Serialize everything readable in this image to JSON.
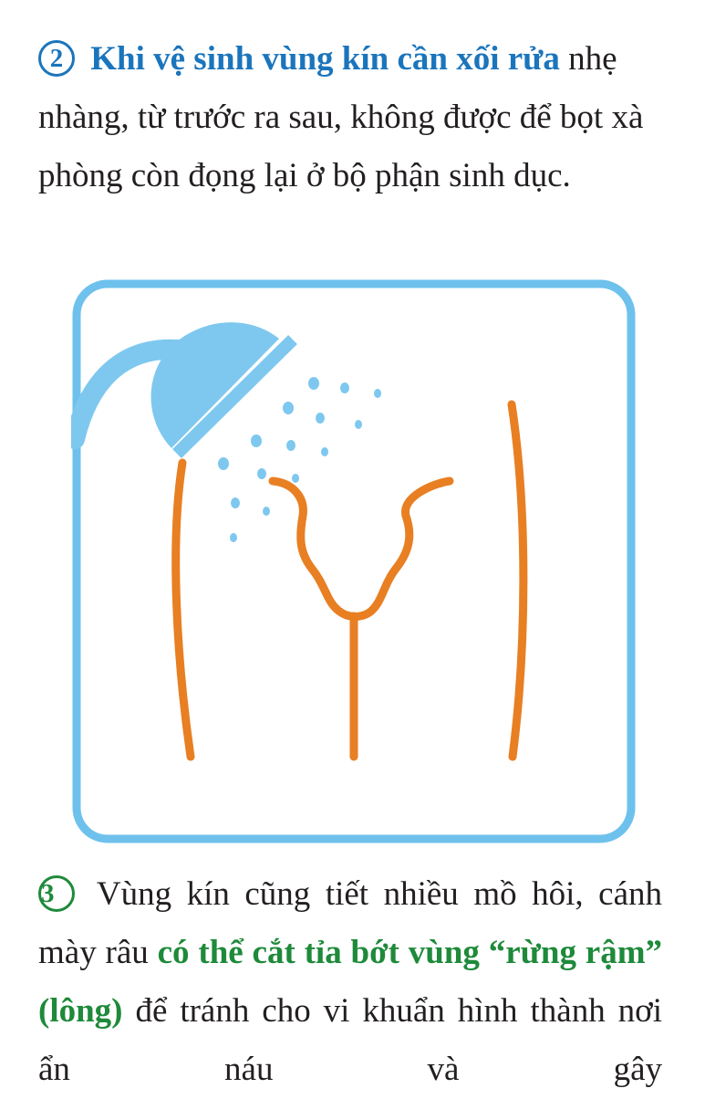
{
  "section2": {
    "number": "2",
    "highlight": "Khi vệ sinh vùng kín cần xối rửa",
    "body": "nhẹ nhàng, từ trước ra sau, không được để bọt xà phòng còn đọng lại ở bộ phận sinh dục."
  },
  "illustration": {
    "frame_color": "#6ec1ec",
    "shower_color": "#7ec8ef",
    "body_color": "#e87f22"
  },
  "section3": {
    "number": "3",
    "text_before": "Vùng kín cũng tiết nhiều mồ hôi, cánh mày râu",
    "highlight": "có thể cắt tỉa bớt vùng “rừng rậm” (lông)",
    "text_after": "để tránh cho vi khuẩn hình thành nơi ẩn náu và gây"
  },
  "colors": {
    "blue_highlight": "#1b75bc",
    "green_highlight": "#1e8a3a",
    "text": "#231f20"
  }
}
